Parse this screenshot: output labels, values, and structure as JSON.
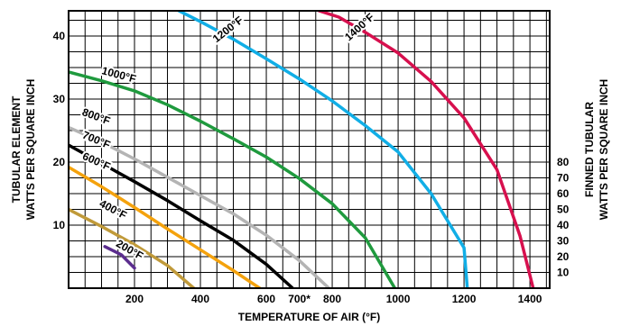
{
  "chart_data": {
    "type": "line",
    "title": "",
    "xlabel": "TEMPERATURE OF AIR (°F)",
    "ylabel_left": [
      "TUBULAR ELEMENT",
      "WATTS PER SQUARE INCH"
    ],
    "ylabel_right": [
      "FINNED TUBULAR",
      "WATTS PER SQUARE INCH"
    ],
    "xlim": [
      0,
      1460
    ],
    "ylim": [
      0,
      44
    ],
    "grid": true,
    "x_ticks": [
      {
        "value": 200,
        "label": "200"
      },
      {
        "value": 400,
        "label": "400"
      },
      {
        "value": 600,
        "label": "600"
      },
      {
        "value": 700,
        "label": "700*"
      },
      {
        "value": 800,
        "label": "800"
      },
      {
        "value": 1000,
        "label": "1000"
      },
      {
        "value": 1200,
        "label": "1200"
      },
      {
        "value": 1400,
        "label": "1400"
      }
    ],
    "y_ticks_left": [
      {
        "value": 10,
        "label": "10"
      },
      {
        "value": 20,
        "label": "20"
      },
      {
        "value": 30,
        "label": "30"
      },
      {
        "value": 40,
        "label": "40"
      }
    ],
    "y_ticks_right": [
      {
        "value": 2.5,
        "label": "10"
      },
      {
        "value": 5,
        "label": "20"
      },
      {
        "value": 7.5,
        "label": "30"
      },
      {
        "value": 10,
        "label": "40"
      },
      {
        "value": 12.5,
        "label": "50"
      },
      {
        "value": 15,
        "label": "60"
      },
      {
        "value": 17.5,
        "label": "70"
      },
      {
        "value": 20,
        "label": "80"
      }
    ],
    "series": [
      {
        "name": "200°F",
        "color": "#5b2d8e",
        "label_at": [
          180,
          5.6
        ],
        "label_rot": 30,
        "points": [
          [
            110,
            6.6
          ],
          [
            160,
            5.3
          ],
          [
            200,
            3.2
          ]
        ]
      },
      {
        "name": "400°F",
        "color": "#c09a3a",
        "label_at": [
          130,
          12.0
        ],
        "label_rot": 28,
        "points": [
          [
            0,
            12.5
          ],
          [
            100,
            9.8
          ],
          [
            200,
            6.9
          ],
          [
            300,
            3.6
          ],
          [
            380,
            0
          ]
        ]
      },
      {
        "name": "600°F",
        "color": "#f4a20d",
        "label_at": [
          80,
          19.6
        ],
        "label_rot": 24,
        "points": [
          [
            0,
            19.2
          ],
          [
            100,
            16.1
          ],
          [
            200,
            12.8
          ],
          [
            300,
            9.4
          ],
          [
            400,
            6.1
          ],
          [
            500,
            2.8
          ],
          [
            580,
            0
          ]
        ]
      },
      {
        "name": "700°F",
        "color": "#000000",
        "label_at": [
          80,
          23.0
        ],
        "label_rot": 23,
        "points": [
          [
            0,
            22.7
          ],
          [
            100,
            19.8
          ],
          [
            200,
            16.9
          ],
          [
            300,
            13.9
          ],
          [
            400,
            10.7
          ],
          [
            500,
            7.6
          ],
          [
            600,
            3.8
          ],
          [
            680,
            0
          ]
        ]
      },
      {
        "name": "800°F",
        "color": "#b4b4b4",
        "label_at": [
          80,
          26.7
        ],
        "label_rot": 20,
        "points": [
          [
            0,
            25.5
          ],
          [
            100,
            23.2
          ],
          [
            200,
            20.5
          ],
          [
            300,
            17.6
          ],
          [
            400,
            14.7
          ],
          [
            500,
            11.8
          ],
          [
            600,
            8.4
          ],
          [
            700,
            4.4
          ],
          [
            790,
            0
          ]
        ]
      },
      {
        "name": "1000°F",
        "color": "#1f9a3e",
        "label_at": [
          150,
          33.3
        ],
        "label_rot": 15,
        "points": [
          [
            0,
            34.3
          ],
          [
            100,
            32.9
          ],
          [
            200,
            31.3
          ],
          [
            300,
            29.1
          ],
          [
            400,
            26.5
          ],
          [
            500,
            23.7
          ],
          [
            600,
            20.8
          ],
          [
            700,
            17.4
          ],
          [
            800,
            13.4
          ],
          [
            900,
            8.0
          ],
          [
            990,
            0
          ]
        ]
      },
      {
        "name": "1200°F",
        "color": "#11aee6",
        "label_at": [
          490,
          40.6
        ],
        "label_rot": -38,
        "points": [
          [
            335,
            44
          ],
          [
            400,
            42.3
          ],
          [
            500,
            39.5
          ],
          [
            600,
            36.4
          ],
          [
            700,
            33.2
          ],
          [
            800,
            29.7
          ],
          [
            900,
            25.8
          ],
          [
            1000,
            21.6
          ],
          [
            1100,
            15.0
          ],
          [
            1200,
            6.4
          ],
          [
            1210,
            0
          ]
        ]
      },
      {
        "name": "1400°F",
        "color": "#d7104e",
        "label_at": [
          890,
          41.0
        ],
        "label_rot": -42,
        "points": [
          [
            760,
            44
          ],
          [
            820,
            43.0
          ],
          [
            900,
            40.6
          ],
          [
            1000,
            37.3
          ],
          [
            1100,
            32.8
          ],
          [
            1200,
            27.0
          ],
          [
            1300,
            18.8
          ],
          [
            1370,
            8.3
          ],
          [
            1410,
            0
          ]
        ]
      }
    ]
  }
}
